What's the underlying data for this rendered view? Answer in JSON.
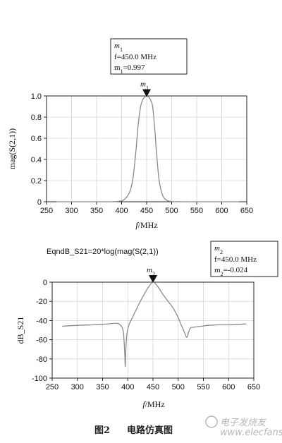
{
  "chart_data": [
    {
      "type": "line",
      "xlabel": "f/MHz",
      "ylabel": "mag(S(2,1))",
      "xlim": [
        250,
        650
      ],
      "ylim": [
        0,
        1.0
      ],
      "xticks": [
        250,
        300,
        350,
        400,
        450,
        500,
        550,
        600,
        650
      ],
      "xtick_labels": [
        "250",
        "300",
        "350",
        "400",
        "450",
        "500",
        "550",
        "600",
        "650"
      ],
      "yticks": [
        0,
        0.2,
        0.4,
        0.6,
        0.8,
        1.0
      ],
      "ytick_labels": [
        "0",
        "0.2",
        "0.4",
        "0.6",
        "0.8",
        "1.0"
      ],
      "grid": true,
      "series": [
        {
          "x": [
            270,
            300,
            350,
            380,
            395,
            405,
            415,
            422,
            428,
            433,
            438,
            442,
            446,
            450,
            454,
            458,
            462,
            466,
            470,
            475,
            482,
            490,
            500,
            520,
            550,
            600,
            635
          ],
          "y": [
            0.0,
            0.0,
            0.0,
            0.0,
            0.005,
            0.02,
            0.08,
            0.2,
            0.45,
            0.72,
            0.9,
            0.96,
            0.99,
            0.997,
            0.99,
            0.96,
            0.9,
            0.7,
            0.45,
            0.2,
            0.06,
            0.015,
            0.003,
            0.0,
            0.0,
            0.0,
            0.0
          ]
        }
      ],
      "marker": {
        "id": "m",
        "subscript": "1",
        "x": 450,
        "y": 0.997,
        "name_text": "m",
        "name_sub": "1",
        "line_f": "f=450.0  MHz",
        "line_val_prefix": "m",
        "line_val_sub": "1",
        "line_val_suffix": "=0.997"
      }
    },
    {
      "type": "line",
      "title": "EqndB_S21=20*log(mag(S(2,1))",
      "xlabel": "f/MHz",
      "ylabel": "dB_S21",
      "xlim": [
        250,
        650
      ],
      "ylim": [
        -100,
        0
      ],
      "xticks": [
        250,
        300,
        350,
        400,
        450,
        500,
        550,
        600,
        650
      ],
      "xtick_labels": [
        "250",
        "300",
        "350",
        "400",
        "450",
        "500",
        "550",
        "600",
        "650"
      ],
      "yticks": [
        -100,
        -80,
        -60,
        -40,
        -20,
        0
      ],
      "ytick_labels": [
        "-100",
        "-80",
        "-60",
        "-40",
        "-20",
        "0"
      ],
      "grid": true,
      "series": [
        {
          "x": [
            270,
            300,
            330,
            350,
            370,
            380,
            386,
            390,
            392,
            394,
            395,
            396,
            398,
            402,
            410,
            420,
            430,
            440,
            450,
            460,
            470,
            480,
            490,
            500,
            508,
            513,
            516,
            518,
            520,
            524,
            530,
            545,
            560,
            580,
            600,
            620,
            635
          ],
          "y": [
            -46,
            -45,
            -44.5,
            -44,
            -43,
            -43,
            -45,
            -49,
            -56,
            -75,
            -88,
            -72,
            -55,
            -45,
            -36,
            -25,
            -15,
            -6,
            -0.024,
            -5,
            -13,
            -20,
            -27,
            -37,
            -47,
            -53,
            -57,
            -57,
            -53,
            -48,
            -47,
            -46,
            -45,
            -44.5,
            -44.5,
            -44,
            -43.5
          ]
        }
      ],
      "marker": {
        "id": "m",
        "subscript": "2",
        "x": 450,
        "y": -0.024,
        "name_text": "m",
        "name_sub": "2",
        "line_f": "f=450.0  MHz",
        "line_val_prefix": "m",
        "line_val_sub": "2",
        "line_val_suffix": "=-0.024"
      }
    }
  ],
  "caption": {
    "figure_label": "图2",
    "title": "电路仿真图"
  },
  "watermark": {
    "text": "电子发烧友",
    "url": "www.elecfans.com"
  },
  "colors": {
    "curve": "#8a8a8a",
    "grid": "#d4d4d4",
    "axis": "#222222",
    "marker": "#111111"
  }
}
